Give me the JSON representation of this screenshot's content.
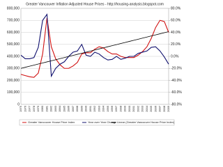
{
  "chart_data": {
    "type": "line",
    "title": "Greater Vancouver Inflation Adjusted House Prices - http://housing-analysis.blogspot.com",
    "categories": [
      "1975",
      "1976",
      "1977",
      "1978",
      "1979",
      "1980",
      "1981",
      "1982",
      "1983",
      "1984",
      "1985",
      "1986",
      "1987",
      "1988",
      "1989",
      "1990",
      "1991",
      "1992",
      "1993",
      "1994",
      "1995",
      "1996",
      "1997",
      "1998",
      "1999",
      "2000",
      "2001",
      "2002",
      "2003",
      "2004",
      "2005",
      "2006",
      "2007",
      "2008",
      "2009"
    ],
    "series": [
      {
        "name": "Greater Vancouver House Price Index",
        "color": "#d01010",
        "values": [
          250000,
          240000,
          230000,
          225000,
          260000,
          420000,
          720000,
          480000,
          380000,
          330000,
          300000,
          300000,
          320000,
          350000,
          420000,
          430000,
          430000,
          460000,
          480000,
          470000,
          440000,
          420000,
          420000,
          400000,
          390000,
          390000,
          390000,
          410000,
          440000,
          480000,
          550000,
          640000,
          700000,
          690000,
          600000
        ]
      },
      {
        "name": "Year over Year Change",
        "color": "#10106e",
        "axis": "y2",
        "values": [
          2,
          -4,
          -4,
          -2,
          15,
          60,
          70,
          -33,
          -20,
          -13,
          -9,
          0,
          7,
          9,
          20,
          2,
          0,
          7,
          4,
          -2,
          -6,
          -5,
          0,
          -5,
          -3,
          0,
          0,
          5,
          7,
          9,
          15,
          16,
          9,
          -1,
          -13
        ]
      },
      {
        "name": "Linear (Greater Vancouver House Price Index)",
        "color": "#000000",
        "values": [
          300000,
          309000,
          318000,
          327000,
          336000,
          345000,
          354000,
          363000,
          372000,
          381000,
          390000,
          399000,
          408000,
          417000,
          426000,
          435000,
          444000,
          453000,
          462000,
          471000,
          480000,
          489000,
          498000,
          507000,
          516000,
          525000,
          534000,
          543000,
          552000,
          561000,
          570000,
          579000,
          588000,
          597000,
          606000
        ]
      }
    ],
    "ylim": [
      0,
      800000
    ],
    "yticks": [
      {
        "value": 0,
        "label": "0"
      },
      {
        "value": 100000,
        "label": "100,000"
      },
      {
        "value": 200000,
        "label": "200,000"
      },
      {
        "value": 300000,
        "label": "300,000"
      },
      {
        "value": 400000,
        "label": "400,000"
      },
      {
        "value": 500000,
        "label": "500,000"
      },
      {
        "value": 600000,
        "label": "600,000"
      },
      {
        "value": 700000,
        "label": "700,000"
      },
      {
        "value": 800000,
        "label": "800,000"
      }
    ],
    "y2lim": [
      -80,
      80
    ],
    "y2ticks": [
      {
        "value": -80,
        "label": "-80.0%"
      },
      {
        "value": -60,
        "label": "-60.0%"
      },
      {
        "value": -40,
        "label": "-40.0%"
      },
      {
        "value": -20,
        "label": "-20.0%"
      },
      {
        "value": 0,
        "label": "0.0%"
      },
      {
        "value": 20,
        "label": "20.0%"
      },
      {
        "value": 40,
        "label": "40.0%"
      },
      {
        "value": 60,
        "label": "60.0%"
      },
      {
        "value": 80,
        "label": "80.0%"
      }
    ],
    "grid": true
  }
}
